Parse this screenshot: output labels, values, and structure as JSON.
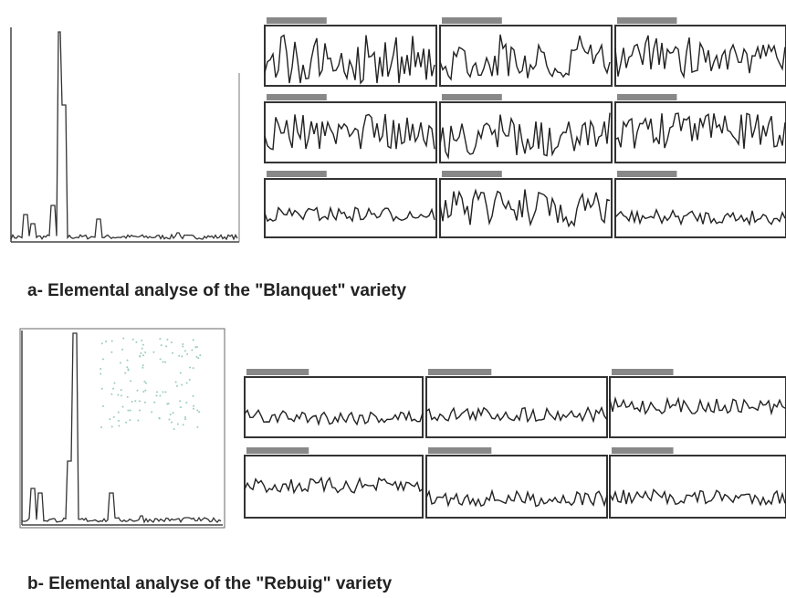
{
  "figure": {
    "caption_a": "a- Elemental analyse of the \"Blanquet\" variety",
    "caption_b": "b- Elemental analyse of the \"Rebuig\" variety"
  }
}
